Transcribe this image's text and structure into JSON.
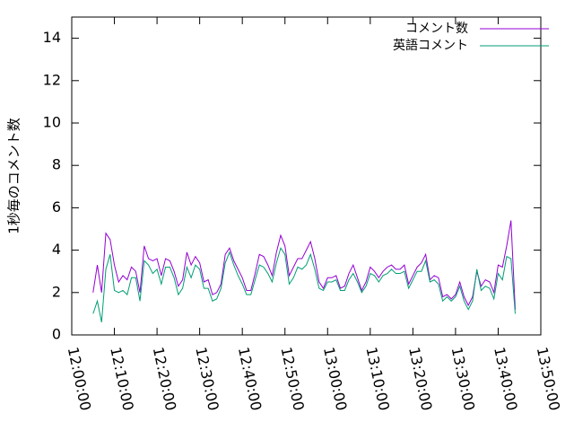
{
  "chart_data": {
    "type": "line",
    "ylabel": "1秒毎のコメント数",
    "x": [
      "12:05:00",
      "12:06:00",
      "12:07:00",
      "12:08:00",
      "12:09:00",
      "12:10:00",
      "12:11:00",
      "12:12:00",
      "12:13:00",
      "12:14:00",
      "12:15:00",
      "12:16:00",
      "12:17:00",
      "12:18:00",
      "12:19:00",
      "12:20:00",
      "12:21:00",
      "12:22:00",
      "12:23:00",
      "12:24:00",
      "12:25:00",
      "12:26:00",
      "12:27:00",
      "12:28:00",
      "12:29:00",
      "12:30:00",
      "12:31:00",
      "12:32:00",
      "12:33:00",
      "12:34:00",
      "12:35:00",
      "12:36:00",
      "12:37:00",
      "12:38:00",
      "12:39:00",
      "12:40:00",
      "12:41:00",
      "12:42:00",
      "12:43:00",
      "12:44:00",
      "12:45:00",
      "12:46:00",
      "12:47:00",
      "12:48:00",
      "12:49:00",
      "12:50:00",
      "12:51:00",
      "12:52:00",
      "12:53:00",
      "12:54:00",
      "12:55:00",
      "12:56:00",
      "12:57:00",
      "12:58:00",
      "12:59:00",
      "13:00:00",
      "13:01:00",
      "13:02:00",
      "13:03:00",
      "13:04:00",
      "13:05:00",
      "13:06:00",
      "13:07:00",
      "13:08:00",
      "13:09:00",
      "13:10:00",
      "13:11:00",
      "13:12:00",
      "13:13:00",
      "13:14:00",
      "13:15:00",
      "13:16:00",
      "13:17:00",
      "13:18:00",
      "13:19:00",
      "13:20:00",
      "13:21:00",
      "13:22:00",
      "13:23:00",
      "13:24:00",
      "13:25:00",
      "13:26:00",
      "13:27:00",
      "13:28:00",
      "13:29:00",
      "13:30:00",
      "13:31:00",
      "13:32:00",
      "13:33:00",
      "13:34:00",
      "13:35:00",
      "13:36:00",
      "13:37:00",
      "13:38:00",
      "13:39:00",
      "13:40:00",
      "13:41:00",
      "13:42:00",
      "13:43:00",
      "13:44:00"
    ],
    "series": [
      {
        "name": "コメント数",
        "color": "#9400d3",
        "values": [
          2.0,
          3.3,
          2.0,
          4.8,
          4.5,
          3.3,
          2.5,
          2.8,
          2.6,
          3.2,
          3.0,
          2.0,
          4.2,
          3.6,
          3.5,
          3.6,
          2.8,
          3.6,
          3.5,
          3.0,
          2.3,
          2.6,
          3.9,
          3.3,
          3.7,
          3.4,
          2.5,
          2.6,
          1.9,
          2.0,
          2.4,
          3.8,
          4.1,
          3.5,
          3.1,
          2.7,
          2.1,
          2.1,
          2.9,
          3.8,
          3.7,
          3.3,
          2.8,
          3.9,
          4.7,
          4.2,
          2.8,
          3.2,
          3.6,
          3.6,
          4.0,
          4.4,
          3.6,
          2.5,
          2.2,
          2.7,
          2.7,
          2.8,
          2.2,
          2.3,
          2.9,
          3.3,
          2.7,
          2.1,
          2.5,
          3.2,
          3.0,
          2.7,
          3.0,
          3.2,
          3.3,
          3.1,
          3.1,
          3.3,
          2.4,
          2.8,
          3.2,
          3.4,
          3.8,
          2.6,
          2.8,
          2.7,
          1.8,
          1.9,
          1.7,
          1.9,
          2.5,
          1.8,
          1.4,
          1.8,
          3.0,
          2.3,
          2.6,
          2.5,
          2.0,
          3.3,
          3.2,
          4.2,
          5.4,
          1.2
        ]
      },
      {
        "name": "英語コメント",
        "color": "#009e73",
        "values": [
          1.0,
          1.6,
          0.6,
          3.1,
          3.8,
          2.1,
          2.0,
          2.1,
          1.9,
          2.7,
          2.7,
          1.6,
          3.5,
          3.3,
          2.9,
          3.1,
          2.4,
          3.2,
          3.2,
          2.7,
          1.9,
          2.2,
          3.2,
          2.7,
          3.3,
          3.1,
          2.2,
          2.2,
          1.6,
          1.7,
          2.2,
          3.4,
          3.9,
          3.3,
          2.8,
          2.4,
          1.9,
          1.9,
          2.6,
          3.3,
          3.2,
          2.9,
          2.5,
          3.4,
          4.1,
          3.8,
          2.4,
          2.7,
          3.2,
          3.1,
          3.3,
          3.8,
          3.1,
          2.2,
          2.1,
          2.5,
          2.5,
          2.6,
          2.1,
          2.1,
          2.6,
          2.9,
          2.5,
          2.0,
          2.3,
          2.9,
          2.8,
          2.5,
          2.8,
          2.9,
          3.1,
          2.9,
          2.9,
          3.0,
          2.2,
          2.6,
          3.0,
          3.0,
          3.5,
          2.5,
          2.6,
          2.4,
          1.6,
          1.8,
          1.6,
          1.8,
          2.3,
          1.6,
          1.2,
          1.6,
          3.1,
          2.1,
          2.3,
          2.2,
          1.7,
          2.9,
          2.6,
          3.7,
          3.6,
          1.0
        ]
      }
    ],
    "xlim": [
      "12:00:00",
      "13:50:00"
    ],
    "xticks": [
      "12:00:00",
      "12:10:00",
      "12:20:00",
      "12:30:00",
      "12:40:00",
      "12:50:00",
      "13:00:00",
      "13:10:00",
      "13:20:00",
      "13:30:00",
      "13:40:00",
      "13:50:00"
    ],
    "ylim": [
      0,
      15
    ],
    "yticks": [
      0,
      2,
      4,
      6,
      8,
      10,
      12,
      14
    ],
    "legend": "top-right"
  }
}
